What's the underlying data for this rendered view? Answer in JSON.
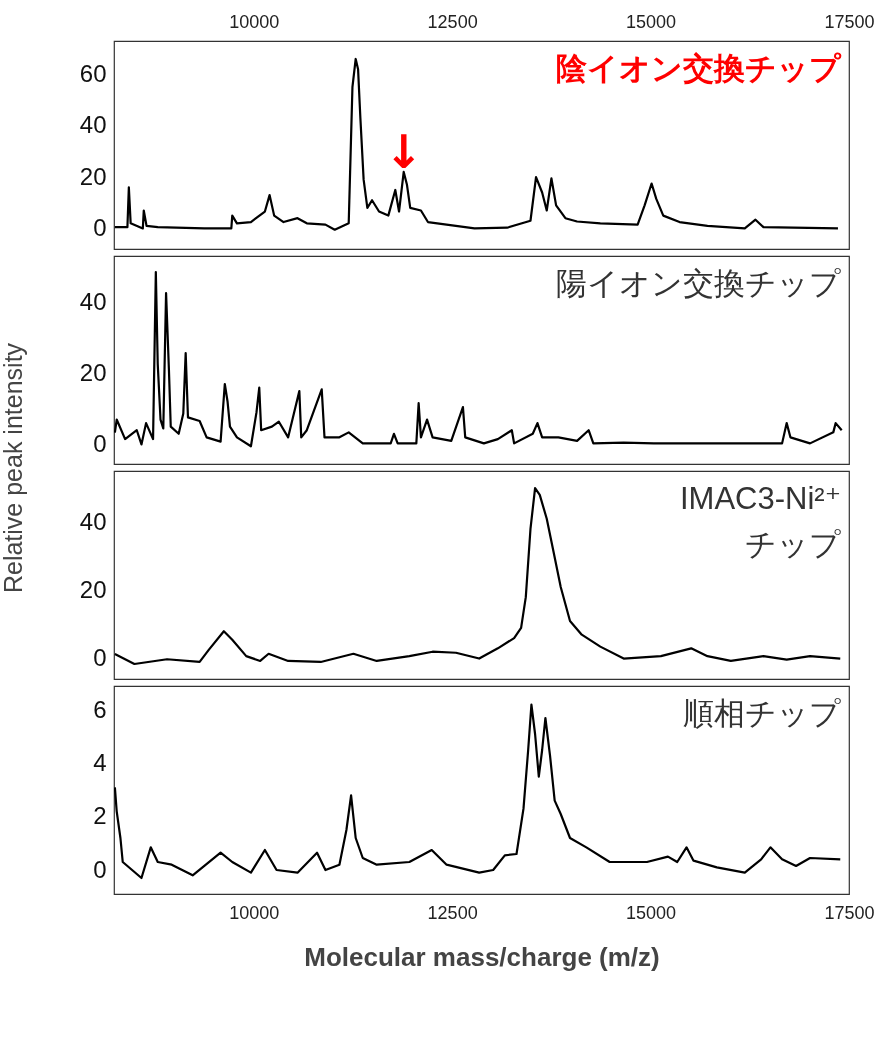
{
  "chart_data": [
    {
      "type": "line",
      "xlim": [
        8240,
        17500
      ],
      "x2lim": [
        8240,
        17500
      ],
      "x2ticks": [
        10000,
        12500,
        15000,
        17500
      ],
      "ylim": [
        -8,
        73
      ],
      "yticks": [
        0,
        20,
        40,
        60
      ],
      "grid": false,
      "annotations": [
        "陰イオン交換チップ",
        {
          "text": "↓",
          "x": 11890,
          "y": 22
        }
      ],
      "series": [
        {
          "color": "#000000",
          "x": [
            8251,
            8409,
            8427,
            8450,
            8603,
            8615,
            8650,
            8791,
            9378,
            9718,
            9730,
            9789,
            9965,
            10141,
            10200,
            10258,
            10376,
            10552,
            10669,
            10904,
            11021,
            11197,
            11244,
            11285,
            11315,
            11344,
            11385,
            11432,
            11491,
            11579,
            11696,
            11784,
            11831,
            11890,
            11931,
            11972,
            12107,
            12195,
            12430,
            12782,
            13193,
            13487,
            13557,
            13634,
            13692,
            13751,
            13810,
            13927,
            14074,
            14367,
            14837,
            14925,
            15013,
            15072,
            15160,
            15365,
            15717,
            16187,
            16322,
            16422,
            17361
          ],
          "values": [
            0.5,
            0.5,
            16,
            2,
            0,
            7,
            1,
            0.5,
            0,
            0,
            5,
            2,
            2.5,
            6.6,
            13,
            5,
            2.5,
            4,
            2,
            1.5,
            -0.5,
            2,
            55,
            66,
            62,
            43,
            19,
            8,
            11,
            6.6,
            5,
            15,
            6.6,
            22,
            17,
            8,
            7,
            2.5,
            1.5,
            0,
            0.3,
            3,
            20,
            14,
            7,
            19.5,
            9,
            4,
            2.7,
            2,
            1.5,
            9,
            17.5,
            11.5,
            5,
            2.5,
            1,
            0,
            3.4,
            0.5,
            0
          ]
        }
      ]
    },
    {
      "type": "line",
      "xlim": [
        8240,
        17500
      ],
      "ylim": [
        -5.5,
        53
      ],
      "yticks": [
        0,
        20,
        40
      ],
      "grid": false,
      "tick_labels": "y",
      "ylabel": "Relative peak  intensity",
      "annotations": [
        "陽イオン交換チップ"
      ],
      "series": [
        {
          "color": "#000000",
          "x": [
            8251,
            8274,
            8380,
            8527,
            8586,
            8644,
            8732,
            8767,
            8791,
            8826,
            8861,
            8896,
            8932,
            8955,
            9055,
            9113,
            9143,
            9172,
            9319,
            9407,
            9583,
            9636,
            9671,
            9701,
            9789,
            9965,
            10035,
            10070,
            10094,
            10229,
            10317,
            10434,
            10575,
            10599,
            10669,
            10857,
            10892,
            11080,
            11197,
            11374,
            11726,
            11767,
            11814,
            12049,
            12078,
            12107,
            12184,
            12254,
            12489,
            12636,
            12665,
            12900,
            13076,
            13252,
            13281,
            13516,
            13575,
            13634,
            13839,
            14074,
            14220,
            14279,
            14661,
            15042,
            16657,
            16715,
            16762,
            17009,
            17302,
            17332,
            17408
          ],
          "values": [
            3.3,
            7,
            1.5,
            4,
            0,
            6,
            1.5,
            48.5,
            22.6,
            7,
            4.5,
            42.6,
            21,
            5,
            3,
            8.7,
            25.7,
            7.6,
            6.6,
            2,
            0.8,
            17,
            12,
            5,
            2,
            -0.5,
            9,
            16,
            4,
            5,
            6.4,
            2,
            15,
            2,
            4,
            15.5,
            2,
            2,
            3.4,
            0.3,
            0.3,
            3,
            0.3,
            0.3,
            11.6,
            2,
            7,
            2,
            1,
            10.5,
            2,
            0.3,
            1.5,
            4,
            0.3,
            3,
            6,
            2,
            2,
            1,
            4,
            0.3,
            0.5,
            0.3,
            0.3,
            6,
            2,
            0.3,
            3.4,
            6,
            4
          ]
        }
      ]
    },
    {
      "type": "line",
      "xlim": [
        8240,
        17500
      ],
      "ylim": [
        -6,
        55
      ],
      "yticks": [
        0,
        20,
        40
      ],
      "grid": false,
      "tick_labels": "y",
      "annotations": [
        "IMAC3-Ni²⁺\nチップ"
      ],
      "series": [
        {
          "color": "#000000",
          "x": [
            8251,
            8380,
            8497,
            8908,
            9319,
            9436,
            9624,
            9730,
            9906,
            10082,
            10188,
            10434,
            10845,
            11256,
            11550,
            11961,
            12254,
            12548,
            12841,
            13076,
            13281,
            13369,
            13428,
            13487,
            13545,
            13604,
            13692,
            13780,
            13868,
            13985,
            14133,
            14367,
            14661,
            15130,
            15512,
            15717,
            16011,
            16422,
            16715,
            17009,
            17390
          ],
          "values": [
            1.3,
            -0.2,
            -1.6,
            -0.2,
            -1,
            2.6,
            8,
            5.5,
            0.7,
            -0.7,
            1.4,
            -0.7,
            -1,
            1.4,
            -0.7,
            0.7,
            2,
            1.7,
            0,
            3,
            6,
            9,
            18,
            38,
            50,
            48,
            41,
            31,
            21,
            11,
            7,
            3.5,
            0,
            0.7,
            3,
            0.7,
            -0.7,
            0.7,
            -0.3,
            0.7,
            0
          ]
        }
      ]
    },
    {
      "type": "line",
      "xlim": [
        8240,
        17500
      ],
      "xticks": [
        10000,
        12500,
        15000,
        17500
      ],
      "ylim": [
        -0.9,
        6.9
      ],
      "yticks": [
        0,
        2,
        4,
        6
      ],
      "grid": false,
      "xlabel": "Molecular mass/charge (m/z)",
      "annotations": [
        "順相チップ"
      ],
      "series": [
        {
          "color": "#000000",
          "x": [
            8251,
            8274,
            8321,
            8350,
            8468,
            8586,
            8703,
            8791,
            8967,
            9231,
            9583,
            9730,
            9965,
            10141,
            10288,
            10552,
            10798,
            10904,
            11080,
            11168,
            11227,
            11285,
            11374,
            11550,
            11961,
            12243,
            12430,
            12841,
            13017,
            13164,
            13311,
            13399,
            13458,
            13499,
            13545,
            13592,
            13634,
            13675,
            13733,
            13792,
            13868,
            13985,
            14191,
            14485,
            14954,
            15219,
            15336,
            15453,
            15541,
            15835,
            16187,
            16393,
            16510,
            16657,
            16833,
            17009,
            17390
          ],
          "values": [
            3.1,
            2.2,
            1.2,
            0.3,
            0,
            -0.3,
            0.85,
            0.3,
            0.2,
            -0.2,
            0.65,
            0.3,
            -0.1,
            0.75,
            0,
            -0.1,
            0.65,
            0,
            0.2,
            1.5,
            2.8,
            1.2,
            0.45,
            0.2,
            0.3,
            0.75,
            0.2,
            -0.1,
            0,
            0.55,
            0.6,
            2.3,
            4.5,
            6.2,
            5.1,
            3.5,
            4.5,
            5.7,
            4.3,
            2.6,
            2.1,
            1.2,
            0.85,
            0.3,
            0.3,
            0.5,
            0.3,
            0.85,
            0.35,
            0.1,
            -0.1,
            0.4,
            0.85,
            0.4,
            0.15,
            0.45,
            0.4
          ]
        }
      ]
    }
  ]
}
